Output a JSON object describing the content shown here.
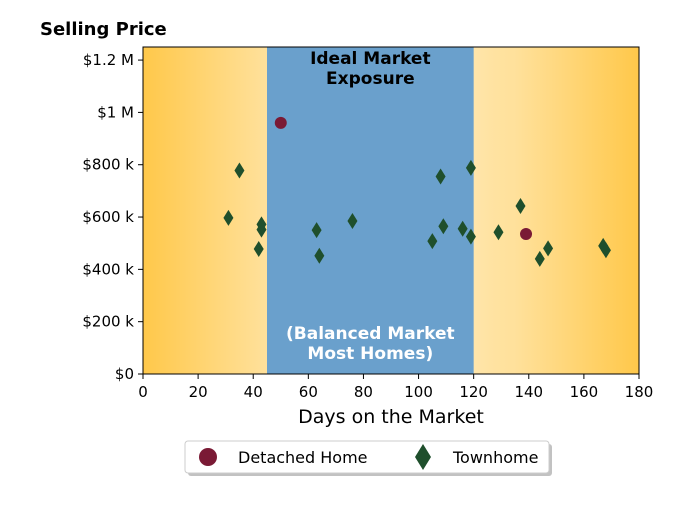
{
  "chart_data": {
    "type": "scatter",
    "ylabel": "Selling Price",
    "xlabel": "Days on the Market",
    "xlim": [
      0,
      180
    ],
    "ylim": [
      0,
      1250000
    ],
    "x_ticks": [
      0,
      20,
      40,
      60,
      80,
      100,
      120,
      140,
      160,
      180
    ],
    "y_ticks": [
      0,
      200000,
      400000,
      600000,
      800000,
      1000000,
      1200000
    ],
    "y_tick_labels": [
      "$0",
      "$200 k",
      "$400 k",
      "$600 k",
      "$800 k",
      "$1 M",
      "$1.2 M"
    ],
    "grid": false,
    "legend_position": "bottom-center",
    "shaded_region": {
      "x_range": [
        45,
        120
      ],
      "color": "#6aa0cc",
      "label_top": [
        "Ideal Market",
        "Exposure"
      ],
      "label_bottom": [
        "(Balanced Market",
        "Most Homes)"
      ]
    },
    "background_gradient": {
      "edge_color": "#ffc84a",
      "center_color": "#ffffff"
    },
    "series": [
      {
        "name": "Detached Home",
        "marker": "circle",
        "color": "#7a1a35",
        "points": [
          [
            50,
            960000
          ],
          [
            139,
            535000
          ]
        ]
      },
      {
        "name": "Townhome",
        "marker": "diamond",
        "color": "#1f4f2c",
        "points": [
          [
            31,
            597000
          ],
          [
            35,
            778000
          ],
          [
            42,
            478000
          ],
          [
            43,
            552000
          ],
          [
            43,
            572000
          ],
          [
            63,
            550000
          ],
          [
            64,
            452000
          ],
          [
            76,
            585000
          ],
          [
            105,
            508000
          ],
          [
            108,
            755000
          ],
          [
            109,
            565000
          ],
          [
            116,
            555000
          ],
          [
            119,
            525000
          ],
          [
            119,
            788000
          ],
          [
            129,
            542000
          ],
          [
            137,
            642000
          ],
          [
            144,
            440000
          ],
          [
            147,
            480000
          ],
          [
            167,
            490000
          ],
          [
            168,
            473000
          ]
        ]
      }
    ]
  }
}
